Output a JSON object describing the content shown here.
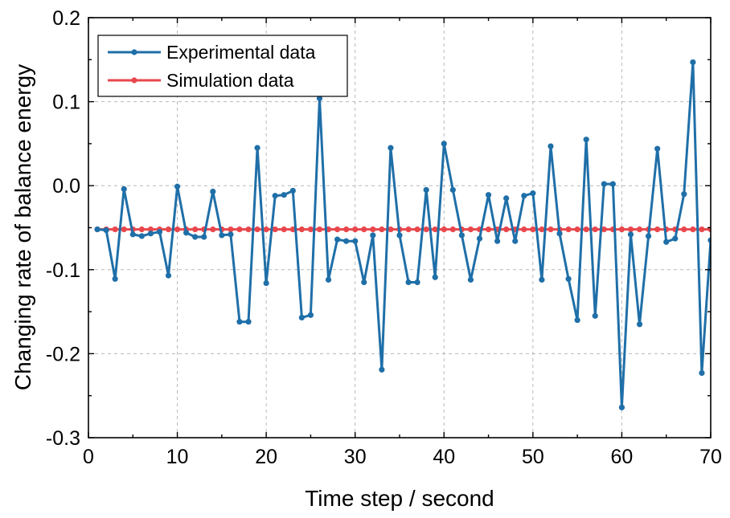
{
  "chart_data": {
    "type": "line",
    "xlabel": "Time step / second",
    "ylabel": "Changing rate of balance energy",
    "xlim": [
      0,
      70
    ],
    "ylim": [
      -0.3,
      0.2
    ],
    "x_ticks": [
      0,
      10,
      20,
      30,
      40,
      50,
      60,
      70
    ],
    "y_ticks": [
      -0.3,
      -0.2,
      -0.1,
      0.0,
      0.1,
      0.2
    ],
    "x_tick_labels": [
      "0",
      "10",
      "20",
      "30",
      "40",
      "50",
      "60",
      "70"
    ],
    "y_tick_labels": [
      "-0.3",
      "-0.2",
      "-0.1",
      "0.0",
      "0.1",
      "0.2"
    ],
    "grid": true,
    "legend_position": "top-left",
    "series": [
      {
        "name": "Experimental data",
        "color": "#1f6fa8",
        "x": [
          1,
          2,
          3,
          4,
          5,
          6,
          7,
          8,
          9,
          10,
          11,
          12,
          13,
          14,
          15,
          16,
          17,
          18,
          19,
          20,
          21,
          22,
          23,
          24,
          25,
          26,
          27,
          28,
          29,
          30,
          31,
          32,
          33,
          34,
          35,
          36,
          37,
          38,
          39,
          40,
          41,
          42,
          43,
          44,
          45,
          46,
          47,
          48,
          49,
          50,
          51,
          52,
          53,
          54,
          55,
          56,
          57,
          58,
          59,
          60,
          61,
          62,
          63,
          64,
          65,
          66,
          67,
          68,
          69,
          70
        ],
        "y": [
          -0.052,
          -0.053,
          -0.111,
          -0.004,
          -0.058,
          -0.06,
          -0.057,
          -0.055,
          -0.107,
          -0.001,
          -0.056,
          -0.061,
          -0.061,
          -0.007,
          -0.059,
          -0.058,
          -0.162,
          -0.162,
          0.045,
          -0.116,
          -0.012,
          -0.011,
          -0.006,
          -0.157,
          -0.154,
          0.104,
          -0.112,
          -0.064,
          -0.066,
          -0.066,
          -0.115,
          -0.059,
          -0.219,
          0.045,
          -0.059,
          -0.115,
          -0.115,
          -0.005,
          -0.109,
          0.05,
          -0.005,
          -0.059,
          -0.112,
          -0.063,
          -0.011,
          -0.066,
          -0.015,
          -0.066,
          -0.012,
          -0.009,
          -0.112,
          0.047,
          -0.057,
          -0.111,
          -0.16,
          0.055,
          -0.155,
          0.002,
          0.002,
          -0.264,
          -0.058,
          -0.165,
          -0.06,
          0.044,
          -0.067,
          -0.063,
          -0.01,
          0.147,
          -0.223,
          -0.065
        ]
      },
      {
        "name": "Simulation data",
        "color": "#e8474c",
        "x": [
          1,
          2,
          3,
          4,
          5,
          6,
          7,
          8,
          9,
          10,
          11,
          12,
          13,
          14,
          15,
          16,
          17,
          18,
          19,
          20,
          21,
          22,
          23,
          24,
          25,
          26,
          27,
          28,
          29,
          30,
          31,
          32,
          33,
          34,
          35,
          36,
          37,
          38,
          39,
          40,
          41,
          42,
          43,
          44,
          45,
          46,
          47,
          48,
          49,
          50,
          51,
          52,
          53,
          54,
          55,
          56,
          57,
          58,
          59,
          60,
          61,
          62,
          63,
          64,
          65,
          66,
          67,
          68,
          69,
          70
        ],
        "y": [
          -0.052,
          -0.052,
          -0.052,
          -0.052,
          -0.052,
          -0.052,
          -0.052,
          -0.052,
          -0.052,
          -0.052,
          -0.052,
          -0.052,
          -0.052,
          -0.052,
          -0.052,
          -0.052,
          -0.052,
          -0.052,
          -0.052,
          -0.052,
          -0.052,
          -0.052,
          -0.052,
          -0.052,
          -0.052,
          -0.052,
          -0.052,
          -0.052,
          -0.052,
          -0.052,
          -0.052,
          -0.052,
          -0.052,
          -0.052,
          -0.052,
          -0.052,
          -0.052,
          -0.052,
          -0.052,
          -0.052,
          -0.052,
          -0.052,
          -0.052,
          -0.052,
          -0.052,
          -0.052,
          -0.052,
          -0.052,
          -0.052,
          -0.052,
          -0.052,
          -0.052,
          -0.052,
          -0.052,
          -0.052,
          -0.052,
          -0.052,
          -0.052,
          -0.052,
          -0.052,
          -0.052,
          -0.052,
          -0.052,
          -0.052,
          -0.052,
          -0.052,
          -0.052,
          -0.052,
          -0.052,
          -0.052
        ]
      }
    ]
  }
}
